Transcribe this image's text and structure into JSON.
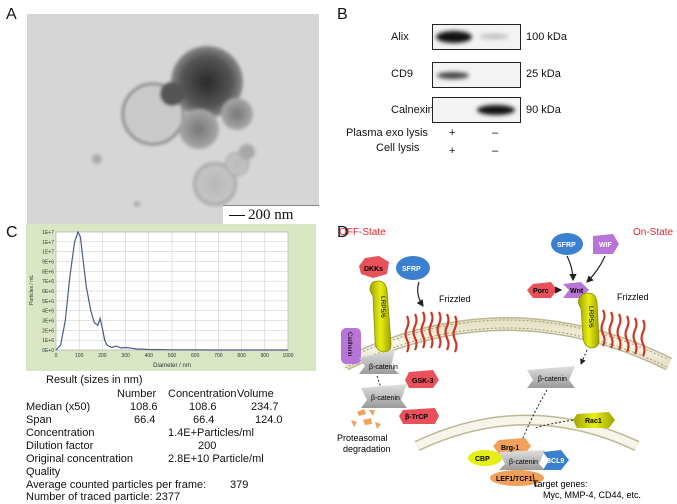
{
  "panels": {
    "a": "A",
    "b": "B",
    "c": "C",
    "d": "D"
  },
  "tem": {
    "scale_bar": "200 nm"
  },
  "western_blot": {
    "rows": [
      {
        "protein": "Alix",
        "size": "100 kDa"
      },
      {
        "protein": "CD9",
        "size": "25 kDa"
      },
      {
        "protein": "Calnexin",
        "size": "90 kDa"
      }
    ],
    "conditions": [
      {
        "label": "Plasma exo lysis",
        "lane1": "+",
        "lane2": "–"
      },
      {
        "label": "Cell lysis",
        "lane1": "+",
        "lane2": "–"
      }
    ]
  },
  "chart_data": {
    "type": "line",
    "xlabel": "Diameter / nm",
    "ylabel": "Particles / mL",
    "xlim": [
      0,
      1000
    ],
    "ylim": [
      0,
      12000000
    ],
    "x_ticks": [
      0,
      100,
      200,
      300,
      400,
      500,
      600,
      700,
      800,
      900,
      1000
    ],
    "y_ticks": [
      "0E+0",
      "1E+6",
      "2E+6",
      "3E+6",
      "4E+6",
      "5E+6",
      "6E+6",
      "7E+6",
      "8E+6",
      "9E+6",
      "1E+7",
      "1E+7",
      "1E+7"
    ],
    "grid": true,
    "x": [
      0,
      20,
      40,
      60,
      80,
      95,
      105,
      115,
      130,
      150,
      165,
      180,
      190,
      200,
      210,
      220,
      240,
      260,
      280,
      300,
      350,
      400,
      500,
      600,
      700,
      800,
      900,
      1000
    ],
    "y": [
      0,
      500000,
      3000000,
      7500000,
      11000000,
      12000000,
      11500000,
      9500000,
      6500000,
      4000000,
      2800000,
      2500000,
      3200000,
      2200000,
      1000000,
      500000,
      250000,
      400000,
      200000,
      250000,
      100000,
      50000,
      20000,
      10000,
      0,
      0,
      0,
      0
    ]
  },
  "results": {
    "title": "Result (sizes in nm)",
    "headers": [
      "Number",
      "Concentration",
      "Volume"
    ],
    "median_label": "Median (x50)",
    "median": [
      "108.6",
      "108.6",
      "234.7"
    ],
    "span_label": "Span",
    "span": [
      "66.4",
      "66.4",
      "124.0"
    ],
    "concentration_label": "Concentration",
    "concentration": "1.4E+Particles/ml",
    "dilution_label": "Dilution factor",
    "dilution": "200",
    "original_label": "Original concentration",
    "original": "2.8E+10 Particle/ml",
    "quality_label": "Quality",
    "avg_label": "Average counted particles per frame:",
    "avg": "379",
    "traced_label": "Number of traced particle: 2377"
  },
  "diagram": {
    "off_state": "OFF-State",
    "on_state": "On-State",
    "dkks": "DKKs",
    "sfrp": "SFRP",
    "frizzled": "Frizzled",
    "lrp56": "LRP5/6",
    "cadherin": "Cadherin",
    "beta_catenin": "β-catenin",
    "gsk3": "GSK-3",
    "btrcp": "β-TrCP",
    "proteasomal": "Proteasomal",
    "degradation": "degradation",
    "wif": "WIF",
    "porc": "Porc",
    "wnt": "Wnt",
    "rac1": "Rac1",
    "brg1": "Brg-1",
    "cbp": "CBP",
    "bcl9": "BCL9",
    "lef1": "LEF1/TCF1",
    "target": "Target genes:",
    "target_list": "Myc, MMP-4, CD44, etc.",
    "red": "#e8242a"
  }
}
